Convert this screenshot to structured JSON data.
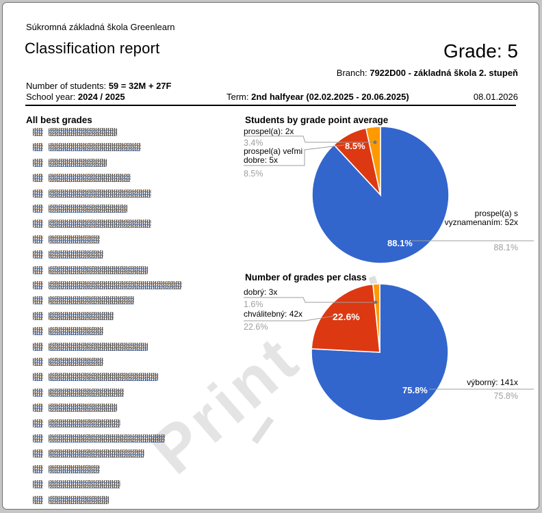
{
  "header": {
    "school_name": "Súkromná základná škola Greenlearn",
    "report_title": "Classification report",
    "grade": "Grade: 5",
    "branch_label": "Branch:",
    "branch_value": "7922D00 - základná škola 2. stupeň",
    "students_label": "Number of students:",
    "students_value": "59 = 32M + 27F",
    "school_year_label": "School year:",
    "school_year_value": "2024 / 2025",
    "term_label": "Term:",
    "term_value": "2nd halfyear (02.02.2025 - 20.06.2025)",
    "date": "08.01.2026"
  },
  "best_grades": {
    "title": "All best grades",
    "note": "student names are pixelated/redacted in source image",
    "row_widths": [
      100,
      135,
      85,
      120,
      150,
      115,
      150,
      75,
      80,
      145,
      195,
      125,
      95,
      80,
      145,
      80,
      160,
      110,
      100,
      105,
      170,
      140,
      75,
      105,
      88
    ]
  },
  "charts": [
    {
      "title": "Students by grade point average",
      "callouts_left": [
        {
          "name": "prospel(a): 2x",
          "pct": "3.4%"
        },
        {
          "name": "prospel(a) veľmi dobre: 5x",
          "pct": "8.5%"
        }
      ],
      "callout_right": {
        "name": "prospel(a) s vyznamenaním: 52x",
        "pct": "88.1%"
      },
      "slice_label_red": "8.5%",
      "slice_label_blue": "88.1%"
    },
    {
      "title": "Number of grades per class",
      "callouts_left": [
        {
          "name": "dobrý: 3x",
          "pct": "1.6%"
        },
        {
          "name": "chválitebný: 42x",
          "pct": "22.6%"
        }
      ],
      "callout_right": {
        "name": "výborný: 141x",
        "pct": "75.8%"
      },
      "slice_label_red": "22.6%",
      "slice_label_blue": "75.8%"
    }
  ],
  "chart_data": [
    {
      "type": "pie",
      "title": "Students by grade point average",
      "labels": [
        "prospel(a) s vyznamenaním",
        "prospel(a) veľmi dobre",
        "prospel(a)"
      ],
      "counts": [
        52,
        5,
        2
      ],
      "values_pct": [
        88.1,
        8.5,
        3.4
      ],
      "colors": [
        "#3366cc",
        "#dc3912",
        "#ff9900"
      ],
      "legend_position": "outside-callouts",
      "start_angle_deg": 0,
      "direction": "clockwise"
    },
    {
      "type": "pie",
      "title": "Number of grades per class",
      "labels": [
        "výborný",
        "chválitebný",
        "dobrý"
      ],
      "counts": [
        141,
        42,
        3
      ],
      "values_pct": [
        75.8,
        22.6,
        1.6
      ],
      "colors": [
        "#3366cc",
        "#dc3912",
        "#ff9900"
      ],
      "legend_position": "outside-callouts",
      "start_angle_deg": 0,
      "direction": "clockwise"
    }
  ],
  "watermark": {
    "text": "Print"
  },
  "colors": {
    "pie_blue": "#3366cc",
    "pie_red": "#dc3912",
    "pie_orange": "#ff9900",
    "muted_text": "#9e9e9e",
    "leader_line": "#9e9e9e"
  }
}
